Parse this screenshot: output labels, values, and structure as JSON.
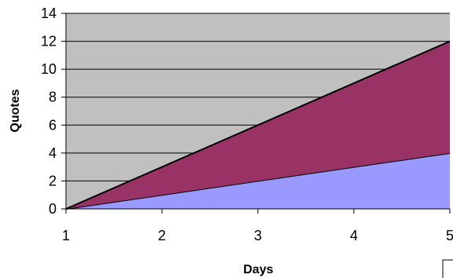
{
  "chart_data": {
    "type": "area",
    "stacked": true,
    "title": "",
    "xlabel": "Days",
    "ylabel": "Quotes",
    "x": [
      1,
      2,
      3,
      4,
      5
    ],
    "xlim": [
      1,
      5
    ],
    "ylim": [
      0,
      14
    ],
    "y_ticks": [
      0,
      2,
      4,
      6,
      8,
      10,
      12,
      14
    ],
    "x_ticks": [
      1,
      2,
      3,
      4,
      5
    ],
    "grid": true,
    "series": [
      {
        "values": [
          0,
          1,
          2,
          3,
          4
        ],
        "color": "#9999ff"
      },
      {
        "values": [
          0,
          2,
          4,
          6,
          8
        ],
        "color": "#993366"
      }
    ],
    "plot_background": "#c0c0c0"
  }
}
